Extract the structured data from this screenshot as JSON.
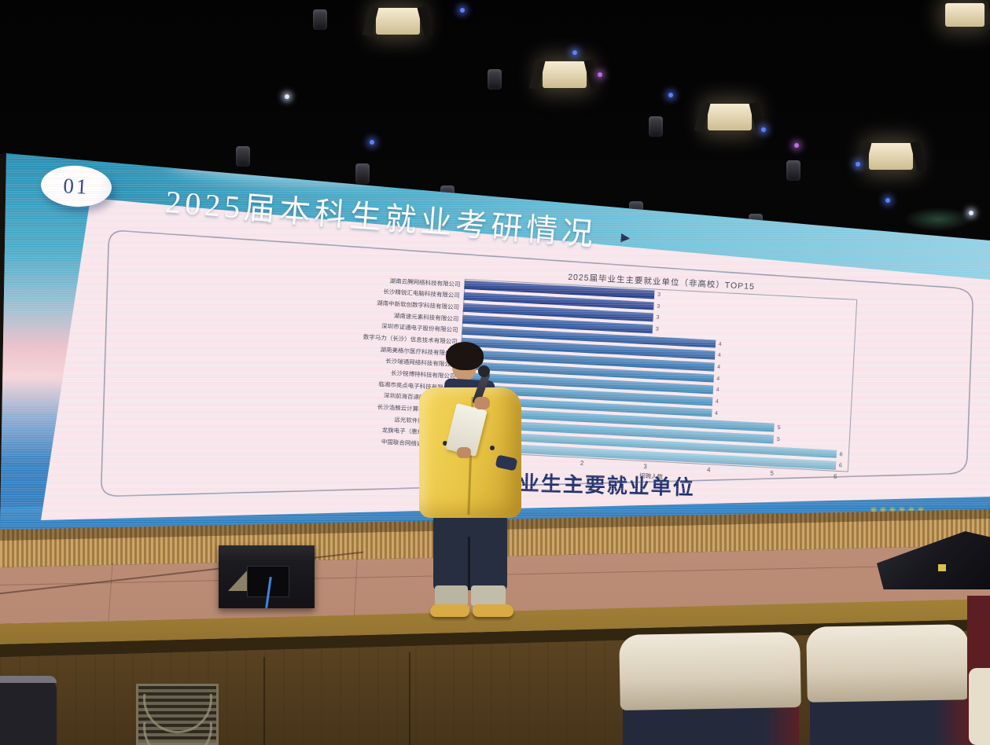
{
  "slide": {
    "section_number": "01",
    "title": "2025届本科生就业考研情况",
    "title_arrow": "▶",
    "caption": "2025届毕业生主要就业单位"
  },
  "chart_data": {
    "type": "bar",
    "orientation": "horizontal",
    "title": "2025届毕业生主要就业单位（非高校）TOP15",
    "xlabel": "招聘人数",
    "xlim": [
      0,
      6.2
    ],
    "xticks": [
      1,
      2,
      3,
      4,
      5,
      6
    ],
    "legend": "none",
    "grid": "off",
    "sort_order": "ascending from top to bottom",
    "categories": [
      "湖南云腾网络科技有限公司",
      "长沙精锐汇电脑科技有限公司",
      "湖南中新软创数字科技有限公司",
      "湖南速元素科技有限公司",
      "深圳市证通电子股份有限公司",
      "数字马力（长沙）信息技术有限公司",
      "湖南美格尔医疗科技有限公司",
      "长沙瑞通网络科技有限公司",
      "长沙锐博特科技有限公司",
      "临湘市亮点电子科技有限公司",
      "深圳前海百递网络有限公司",
      "长沙浩鲸云计算科技有限公司",
      "远光软件股份有限公司",
      "龙旗电子（惠州）有限公司",
      "中国联合网络通信有限公司"
    ],
    "values": [
      3,
      3,
      3,
      3,
      4,
      4,
      4,
      4,
      4,
      4,
      4,
      5,
      5,
      6,
      6
    ],
    "bar_colors": [
      "#203f93",
      "#21449a",
      "#234b9e",
      "#2553a4",
      "#2a60ab",
      "#2f6cb2",
      "#357ab9",
      "#3d87c0",
      "#4592c6",
      "#4e9ccb",
      "#57a5cf",
      "#60add3",
      "#6bb4d7",
      "#79bedb",
      "#86c6e0"
    ]
  },
  "colors": {
    "slide_accent_navy": "#1c2f6d",
    "sky_teal": "#45abc9",
    "jacket_yellow": "#e8c344"
  }
}
